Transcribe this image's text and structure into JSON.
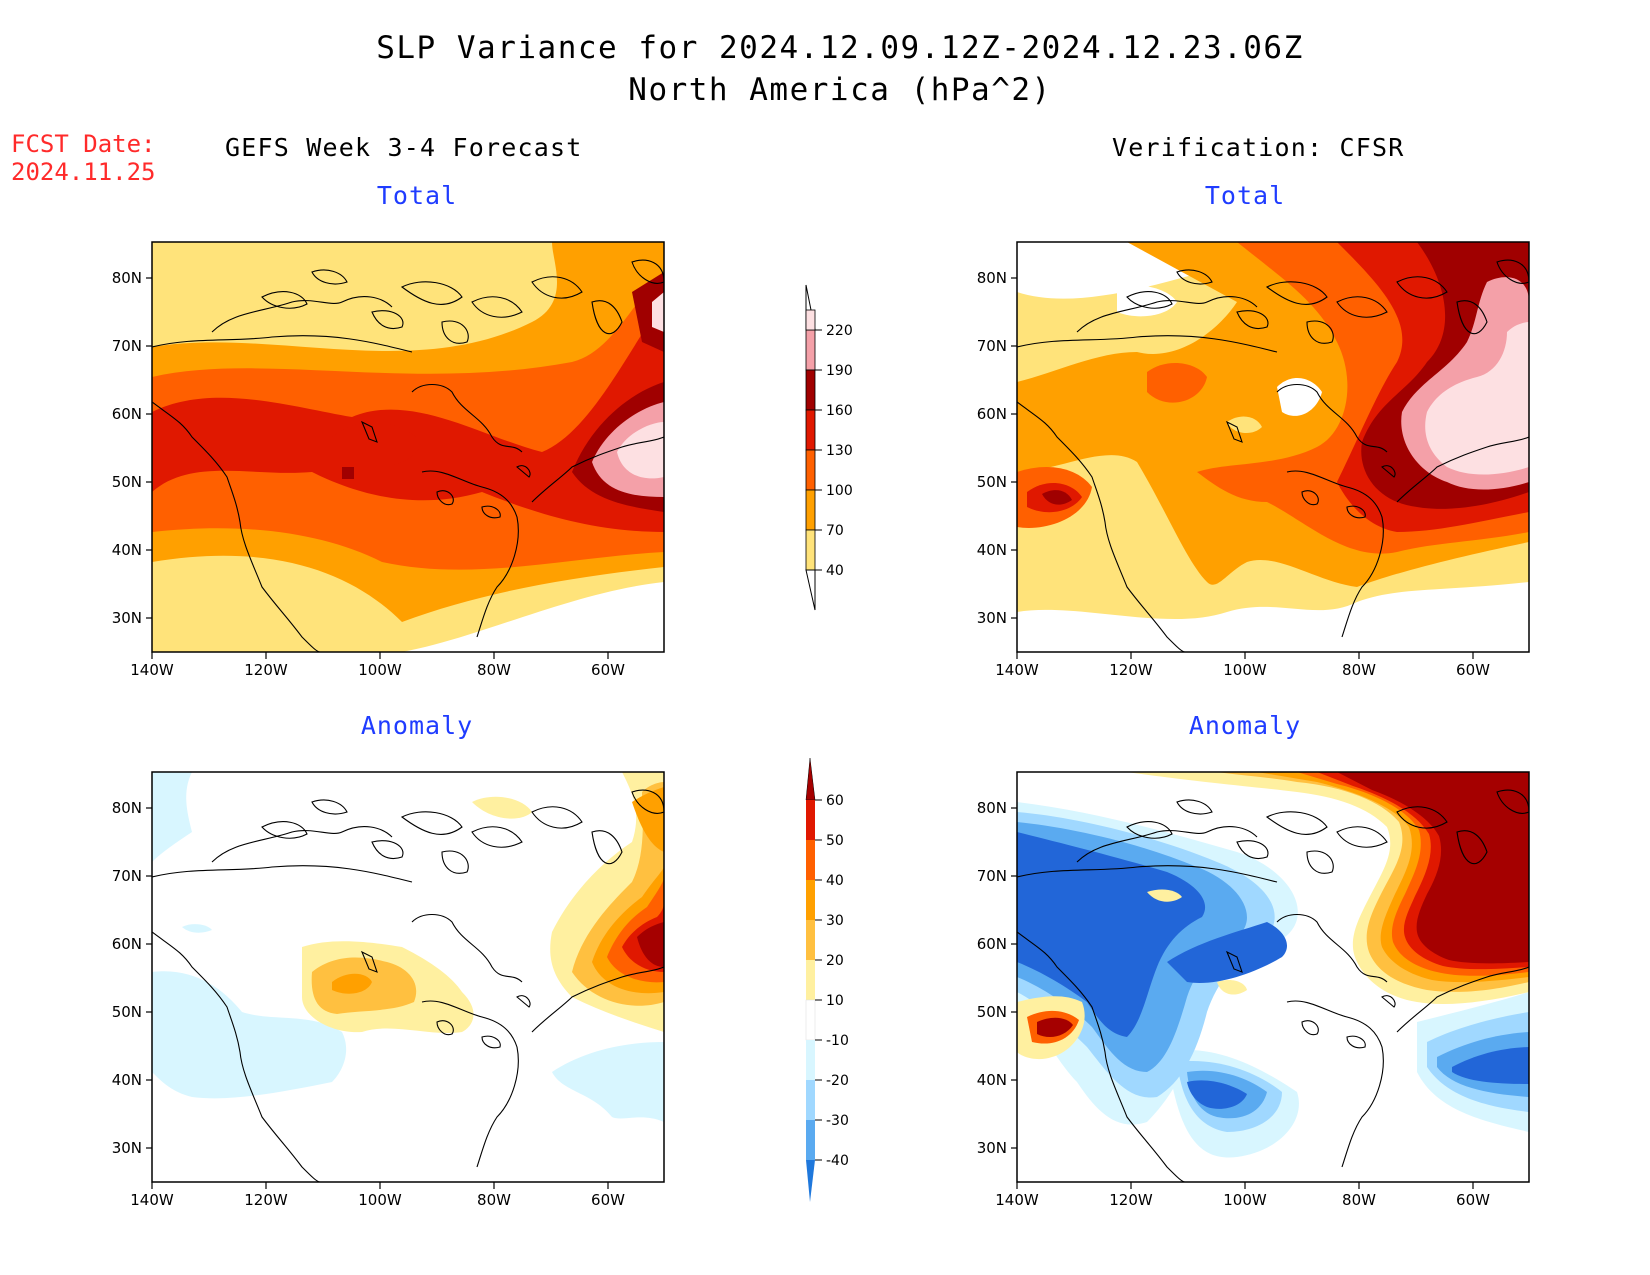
{
  "title": {
    "line1": "SLP Variance for 2024.12.09.12Z-2024.12.23.06Z",
    "line2": "North America (hPa^2)"
  },
  "fcst_date": {
    "label": "FCST Date:",
    "value": "2024.11.25"
  },
  "columns": {
    "left": "GEFS Week 3-4 Forecast",
    "right": "Verification: CFSR"
  },
  "panels": {
    "top_left": "Total",
    "top_right": "Total",
    "bottom_left": "Anomaly",
    "bottom_right": "Anomaly"
  },
  "axes": {
    "lat_labels": [
      "80N",
      "70N",
      "60N",
      "50N",
      "40N",
      "30N"
    ],
    "lon_labels": [
      "140W",
      "120W",
      "100W",
      "80W",
      "60W"
    ]
  },
  "colorbars": {
    "total": {
      "levels": [
        "40",
        "70",
        "100",
        "130",
        "160",
        "190",
        "220"
      ],
      "colors": [
        "#ffe37a",
        "#ffa000",
        "#ff6000",
        "#e01800",
        "#a00000",
        "#f4a0a8",
        "#fde0e2"
      ]
    },
    "anomaly": {
      "levels": [
        "60",
        "50",
        "40",
        "30",
        "20",
        "10",
        "-10",
        "-20",
        "-30",
        "-40"
      ],
      "colors_top_down": [
        "#a50000",
        "#e01800",
        "#ff6000",
        "#ffa000",
        "#ffc040",
        "#fff0a0",
        "#ffffff",
        "#d8f6ff",
        "#a0d8ff",
        "#5aaaf0",
        "#2266d8",
        "#1f78dc"
      ]
    }
  }
}
